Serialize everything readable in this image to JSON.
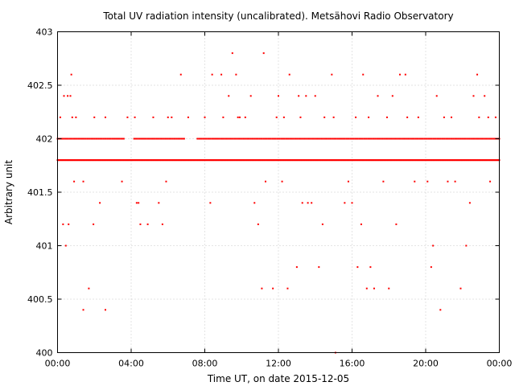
{
  "chart_data": {
    "type": "scatter",
    "title": "Total UV radiation intensity (uncalibrated). Metsähovi Radio Observatory",
    "xlabel": "Time UT, on date 2015-12-05",
    "ylabel": "Arbitrary unit",
    "xlim": [
      "00:00",
      "24:00"
    ],
    "ylim": [
      400,
      403
    ],
    "x_ticks": [
      "00:00",
      "04:00",
      "08:00",
      "12:00",
      "16:00",
      "20:00",
      "00:00"
    ],
    "y_ticks": [
      "400",
      "400.5",
      "401",
      "401.5",
      "402",
      "402.5",
      "403"
    ],
    "grid": true,
    "marker_color": "#ff0000",
    "series": [
      {
        "x_hours": [
          0.3,
          0.45,
          0.6,
          0.75,
          1.7,
          1.4,
          2.6,
          0.35,
          0.55,
          0.7,
          1.15,
          1.95,
          2.3,
          0.9,
          1.4,
          2.6,
          3.5,
          4.3,
          4.4,
          4.5,
          4.9,
          5.5,
          5.7,
          5.9,
          6.2,
          6.7,
          7.8,
          8.3,
          8.4,
          8.9,
          9.3,
          9.5,
          9.7,
          9.9,
          10.5,
          10.7,
          10.9,
          11.1,
          11.2,
          11.3,
          11.7,
          12.0,
          12.2,
          12.5,
          12.6,
          13.0,
          13.1,
          13.3,
          13.5,
          13.6,
          13.8,
          14.0,
          14.2,
          14.4,
          14.9,
          15.1,
          15.6,
          15.8,
          16.0,
          16.3,
          16.5,
          16.6,
          16.8,
          17.0,
          17.2,
          17.4,
          17.7,
          18.0,
          18.2,
          18.4,
          18.6,
          18.9,
          19.4,
          20.1,
          20.3,
          20.4,
          20.6,
          20.8,
          21.2,
          21.6,
          21.9,
          22.2,
          22.4,
          22.6,
          22.8,
          23.2,
          23.5,
          23.8,
          0.15,
          0.25,
          0.8,
          1.0,
          1.3,
          2.0,
          3.2,
          3.8,
          4.2,
          4.6,
          5.2,
          6.0,
          6.6,
          7.1,
          8.0,
          8.6,
          9.0,
          9.8,
          10.2,
          11.5,
          11.9,
          12.3,
          13.2,
          13.9,
          14.5,
          15.0,
          15.4,
          16.2,
          16.9,
          17.5,
          17.9,
          19.0,
          19.6,
          20.0,
          21.0,
          21.4,
          22.0,
          22.9,
          23.4,
          23.9
        ],
        "y": [
          401.2,
          401.0,
          401.2,
          402.6,
          400.6,
          400.4,
          400.4,
          402.4,
          402.4,
          402.4,
          402.0,
          401.2,
          401.4,
          401.6,
          401.6,
          402.2,
          401.6,
          401.4,
          401.4,
          401.2,
          401.2,
          401.4,
          401.2,
          401.6,
          402.2,
          402.6,
          402.0,
          401.4,
          402.6,
          402.6,
          402.4,
          402.8,
          402.6,
          402.2,
          402.4,
          401.4,
          401.2,
          400.6,
          402.8,
          401.6,
          400.6,
          402.4,
          401.6,
          400.6,
          402.6,
          400.8,
          402.4,
          401.4,
          402.4,
          401.4,
          401.4,
          402.4,
          400.8,
          401.2,
          402.6,
          400.0,
          401.4,
          401.6,
          401.4,
          400.8,
          401.2,
          402.6,
          400.6,
          400.8,
          400.6,
          402.4,
          401.6,
          400.6,
          402.4,
          401.2,
          402.6,
          402.6,
          401.6,
          401.6,
          400.8,
          401.0,
          402.4,
          400.4,
          401.6,
          401.6,
          400.6,
          401.0,
          401.4,
          402.4,
          402.6,
          402.4,
          401.6,
          402.2,
          402.2,
          402.0,
          402.2,
          402.2,
          402.0,
          402.2,
          402.0,
          402.2,
          402.2,
          402.0,
          402.2,
          402.2,
          402.0,
          402.2,
          402.2,
          402.0,
          402.2,
          402.2,
          402.2,
          402.0,
          402.2,
          402.2,
          402.2,
          402.0,
          402.2,
          402.2,
          402.0,
          402.2,
          402.2,
          402.0,
          402.2,
          402.2,
          402.2,
          402.0,
          402.2,
          402.2,
          402.0,
          402.2,
          402.2,
          402.0
        ]
      }
    ],
    "baseline_value": 401.8,
    "upper_band_value": 402.0
  }
}
